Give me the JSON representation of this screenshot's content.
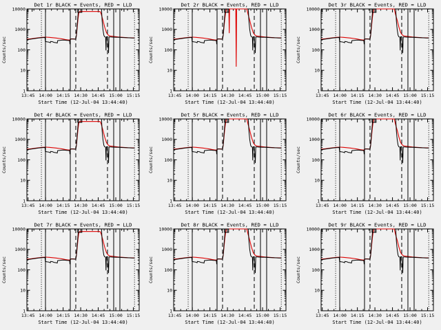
{
  "app": {
    "background": "#f0f0f0",
    "axis_color": "#000000",
    "red_color": "#dd0000",
    "black_color": "#000000"
  },
  "legend": {
    "black_label": "Events",
    "red_label": "LLD"
  },
  "chart_data": {
    "type": "line",
    "grid": "3x3",
    "ylabel": "Counts/sec",
    "xlabel": "Start Time (12-Jul-04 13:44:40)",
    "yscale": "log",
    "ylim": [
      1,
      10000
    ],
    "y_tick_labels": [
      "1",
      "10",
      "100",
      "1000",
      "10000"
    ],
    "y_tick_values": [
      1,
      10,
      100,
      1000,
      10000
    ],
    "x_domain_minutes_from_1344": [
      0,
      96
    ],
    "x_major_ticks": [
      {
        "t": 1,
        "label": "13:45"
      },
      {
        "t": 16,
        "label": "14:00"
      },
      {
        "t": 31,
        "label": "14:15"
      },
      {
        "t": 46,
        "label": "14:30"
      },
      {
        "t": 61,
        "label": "14:45"
      },
      {
        "t": 76,
        "label": "15:00"
      },
      {
        "t": 91,
        "label": "15:15"
      }
    ],
    "x_minor_step_minutes": 5,
    "reflines": [
      {
        "t": 12.4,
        "style": "dotted"
      },
      {
        "t": 15.9,
        "style": "solid"
      },
      {
        "t": 37.1,
        "style": "solid"
      },
      {
        "t": 41.8,
        "style": "dashed"
      },
      {
        "t": 68.9,
        "style": "dashed"
      },
      {
        "t": 74.2,
        "style": "solid"
      },
      {
        "t": 79.5,
        "style": "solid"
      },
      {
        "t": 92.0,
        "style": "dotted"
      }
    ],
    "series_base": {
      "red_lld": [
        [
          0,
          330
        ],
        [
          2,
          340
        ],
        [
          4,
          350
        ],
        [
          7,
          370
        ],
        [
          10,
          390
        ],
        [
          13,
          410
        ],
        [
          16,
          420
        ],
        [
          19,
          408
        ],
        [
          22,
          392
        ],
        [
          25,
          378
        ],
        [
          28,
          360
        ],
        [
          31,
          338
        ],
        [
          33,
          320
        ],
        [
          35,
          308
        ],
        [
          36.5,
          300
        ],
        [
          37,
          328
        ],
        [
          38,
          342
        ],
        [
          39.5,
          345
        ],
        [
          41,
          338
        ],
        [
          41.8,
          345
        ],
        [
          42.3,
          480
        ],
        [
          43,
          1200
        ],
        [
          43.7,
          3200
        ],
        [
          44.4,
          6500
        ],
        [
          45.2,
          null
        ],
        [
          62.5,
          null
        ],
        [
          63.5,
          5800
        ],
        [
          65,
          2800
        ],
        [
          66.5,
          1300
        ],
        [
          68,
          700
        ],
        [
          69.3,
          540
        ],
        [
          70.5,
          490
        ],
        [
          72,
          465
        ],
        [
          75,
          445
        ],
        [
          78,
          425
        ],
        [
          82,
          408
        ],
        [
          86,
          395
        ],
        [
          90,
          385
        ],
        [
          92,
          382
        ]
      ],
      "black_events_pre": [
        [
          0,
          318
        ],
        [
          2,
          328
        ],
        [
          4,
          338
        ],
        [
          7,
          358
        ],
        [
          10,
          378
        ],
        [
          13,
          398
        ],
        [
          15.5,
          402
        ],
        [
          15.8,
          255
        ],
        [
          17,
          248
        ],
        [
          19,
          238
        ],
        [
          20,
          222
        ],
        [
          20.3,
          258
        ],
        [
          22,
          250
        ],
        [
          23,
          232
        ],
        [
          25,
          224
        ],
        [
          26,
          216
        ],
        [
          26.3,
          282
        ],
        [
          28,
          288
        ],
        [
          30,
          298
        ],
        [
          32,
          300
        ],
        [
          34,
          292
        ],
        [
          35.5,
          288
        ],
        [
          36.5,
          282
        ],
        [
          36.8,
          188
        ],
        [
          37.2,
          330
        ],
        [
          38,
          340
        ],
        [
          39.5,
          338
        ],
        [
          41,
          332
        ],
        [
          41.9,
          348
        ],
        [
          42.4,
          560
        ],
        [
          43,
          1600
        ],
        [
          43.6,
          4200
        ],
        [
          44.2,
          12000
        ]
      ],
      "black_events_post": [
        [
          63.8,
          12000
        ],
        [
          64.3,
          2600
        ],
        [
          65,
          1000
        ],
        [
          65.8,
          520
        ],
        [
          66.5,
          430
        ],
        [
          67.3,
          425
        ],
        [
          67.6,
          95
        ],
        [
          68,
          432
        ],
        [
          69,
          440
        ],
        [
          69.8,
          70
        ],
        [
          70.2,
          430
        ],
        [
          71.5,
          425
        ],
        [
          73,
          420
        ],
        [
          75,
          415
        ],
        [
          78,
          408
        ],
        [
          82,
          400
        ],
        [
          86,
          390
        ],
        [
          90,
          382
        ],
        [
          92,
          380
        ]
      ],
      "black_top_clip_marks": [
        {
          "shape": "corner-right",
          "t1": 0.7,
          "t2": 4.5
        },
        {
          "shape": "rect",
          "t1": 43.5,
          "t2": 47
        },
        {
          "shape": "corner-left",
          "t1": 83,
          "t2": 86.5
        }
      ]
    },
    "panels": [
      {
        "det": "1r",
        "title": "Det 1r BLACK = Events, RED = LLD",
        "plateau": 7500,
        "red_spikes": []
      },
      {
        "det": "2r",
        "title": "Det 2r BLACK = Events, RED = LLD",
        "plateau": 13000,
        "red_spikes": [
          [
            47.5,
            650
          ],
          [
            53.5,
            15
          ]
        ]
      },
      {
        "det": "3r",
        "title": "Det 3r BLACK = Events, RED = LLD",
        "plateau": 11000,
        "red_spikes": []
      },
      {
        "det": "4r",
        "title": "Det 4r BLACK = Events, RED = LLD",
        "plateau": 7500,
        "red_spikes": []
      },
      {
        "det": "5r",
        "title": "Det 5r BLACK = Events, RED = LLD",
        "plateau": 13000,
        "red_spikes": []
      },
      {
        "det": "6r",
        "title": "Det 6r BLACK = Events, RED = LLD",
        "plateau": 11000,
        "red_spikes": []
      },
      {
        "det": "7r",
        "title": "Det 7r BLACK = Events, RED = LLD",
        "plateau": 7500,
        "red_spikes": []
      },
      {
        "det": "8r",
        "title": "Det 8r BLACK = Events, RED = LLD",
        "plateau": 13000,
        "red_spikes": []
      },
      {
        "det": "9r",
        "title": "Det 9r BLACK = Events, RED = LLD",
        "plateau": 11000,
        "red_spikes": []
      }
    ]
  }
}
